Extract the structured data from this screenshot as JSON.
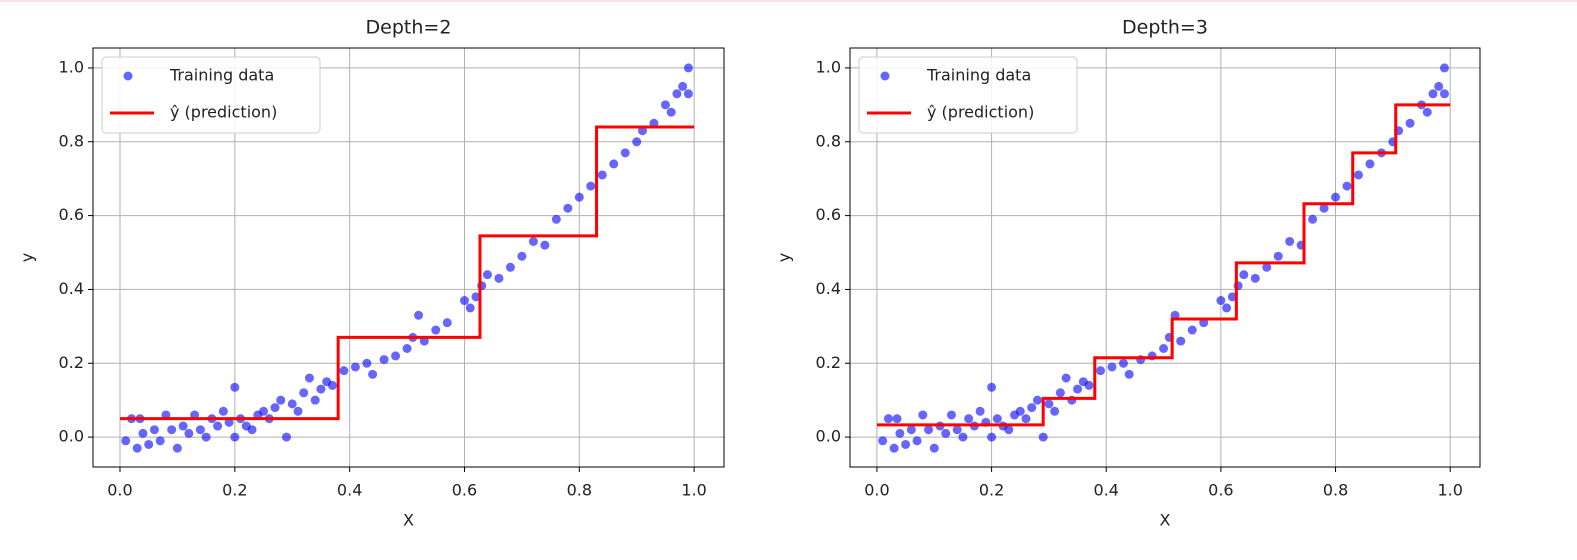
{
  "chart_data": [
    {
      "type": "scatter",
      "title": "Depth=2",
      "xlabel": "X",
      "ylabel": "y",
      "grid": true,
      "legend": "upper left",
      "xlim": [
        -0.047,
        1.052
      ],
      "ylim": [
        -0.081,
        1.054
      ],
      "xticks": [
        {
          "value": 0,
          "label": "0.0"
        },
        0.2,
        0.4,
        0.6,
        0.8,
        {
          "value": 1,
          "label": "1.0"
        }
      ],
      "yticks": [
        {
          "value": 0,
          "label": "0.0"
        },
        0.2,
        0.4,
        0.6,
        0.8,
        {
          "value": 1,
          "label": "1.0"
        }
      ],
      "series": [
        {
          "name": "Training data",
          "type": "scatter",
          "color": "#0000ff",
          "x": [
            0.01,
            0.02,
            0.03,
            0.035,
            0.04,
            0.05,
            0.06,
            0.07,
            0.08,
            0.09,
            0.1,
            0.11,
            0.12,
            0.13,
            0.14,
            0.15,
            0.16,
            0.17,
            0.18,
            0.19,
            0.2,
            0.2,
            0.21,
            0.22,
            0.23,
            0.24,
            0.25,
            0.26,
            0.27,
            0.28,
            0.29,
            0.3,
            0.31,
            0.32,
            0.33,
            0.34,
            0.35,
            0.36,
            0.37,
            0.39,
            0.41,
            0.43,
            0.44,
            0.46,
            0.48,
            0.5,
            0.51,
            0.52,
            0.53,
            0.55,
            0.57,
            0.6,
            0.61,
            0.62,
            0.63,
            0.64,
            0.66,
            0.68,
            0.7,
            0.72,
            0.74,
            0.76,
            0.78,
            0.8,
            0.82,
            0.84,
            0.86,
            0.88,
            0.9,
            0.91,
            0.93,
            0.95,
            0.96,
            0.97,
            0.98,
            0.99,
            0.99
          ],
          "values": [
            -0.01,
            0.05,
            -0.03,
            0.05,
            0.01,
            -0.02,
            0.02,
            -0.01,
            0.06,
            0.02,
            -0.03,
            0.03,
            0.01,
            0.06,
            0.02,
            0.0,
            0.05,
            0.03,
            0.07,
            0.04,
            0.135,
            0.0,
            0.05,
            0.03,
            0.02,
            0.06,
            0.07,
            0.05,
            0.08,
            0.1,
            0.0,
            0.09,
            0.07,
            0.12,
            0.16,
            0.1,
            0.13,
            0.15,
            0.14,
            0.18,
            0.19,
            0.2,
            0.17,
            0.21,
            0.22,
            0.24,
            0.27,
            0.33,
            0.26,
            0.29,
            0.31,
            0.37,
            0.35,
            0.38,
            0.41,
            0.44,
            0.43,
            0.46,
            0.49,
            0.53,
            0.52,
            0.59,
            0.62,
            0.65,
            0.68,
            0.71,
            0.74,
            0.77,
            0.8,
            0.83,
            0.85,
            0.9,
            0.88,
            0.93,
            0.95,
            1.0,
            0.93
          ]
        },
        {
          "name": "ŷ (prediction)",
          "type": "line",
          "color": "#ff0000",
          "x": [
            0,
            0.38,
            0.38,
            0.627,
            0.627,
            0.83,
            0.83,
            1.0
          ],
          "values": [
            0.05,
            0.05,
            0.27,
            0.27,
            0.545,
            0.545,
            0.84,
            0.84
          ]
        }
      ]
    },
    {
      "type": "scatter",
      "title": "Depth=3",
      "xlabel": "X",
      "ylabel": "y",
      "grid": true,
      "legend": "upper left",
      "xlim": [
        -0.047,
        1.052
      ],
      "ylim": [
        -0.081,
        1.054
      ],
      "xticks": [
        {
          "value": 0,
          "label": "0.0"
        },
        0.2,
        0.4,
        0.6,
        0.8,
        {
          "value": 1,
          "label": "1.0"
        }
      ],
      "yticks": [
        {
          "value": 0,
          "label": "0.0"
        },
        0.2,
        0.4,
        0.6,
        0.8,
        {
          "value": 1,
          "label": "1.0"
        }
      ],
      "series": [
        {
          "name": "Training data",
          "type": "scatter",
          "color": "#0000ff",
          "x": [
            0.01,
            0.02,
            0.03,
            0.035,
            0.04,
            0.05,
            0.06,
            0.07,
            0.08,
            0.09,
            0.1,
            0.11,
            0.12,
            0.13,
            0.14,
            0.15,
            0.16,
            0.17,
            0.18,
            0.19,
            0.2,
            0.2,
            0.21,
            0.22,
            0.23,
            0.24,
            0.25,
            0.26,
            0.27,
            0.28,
            0.29,
            0.3,
            0.31,
            0.32,
            0.33,
            0.34,
            0.35,
            0.36,
            0.37,
            0.39,
            0.41,
            0.43,
            0.44,
            0.46,
            0.48,
            0.5,
            0.51,
            0.52,
            0.53,
            0.55,
            0.57,
            0.6,
            0.61,
            0.62,
            0.63,
            0.64,
            0.66,
            0.68,
            0.7,
            0.72,
            0.74,
            0.76,
            0.78,
            0.8,
            0.82,
            0.84,
            0.86,
            0.88,
            0.9,
            0.91,
            0.93,
            0.95,
            0.96,
            0.97,
            0.98,
            0.99,
            0.99
          ],
          "values": [
            -0.01,
            0.05,
            -0.03,
            0.05,
            0.01,
            -0.02,
            0.02,
            -0.01,
            0.06,
            0.02,
            -0.03,
            0.03,
            0.01,
            0.06,
            0.02,
            0.0,
            0.05,
            0.03,
            0.07,
            0.04,
            0.135,
            0.0,
            0.05,
            0.03,
            0.02,
            0.06,
            0.07,
            0.05,
            0.08,
            0.1,
            0.0,
            0.09,
            0.07,
            0.12,
            0.16,
            0.1,
            0.13,
            0.15,
            0.14,
            0.18,
            0.19,
            0.2,
            0.17,
            0.21,
            0.22,
            0.24,
            0.27,
            0.33,
            0.26,
            0.29,
            0.31,
            0.37,
            0.35,
            0.38,
            0.41,
            0.44,
            0.43,
            0.46,
            0.49,
            0.53,
            0.52,
            0.59,
            0.62,
            0.65,
            0.68,
            0.71,
            0.74,
            0.77,
            0.8,
            0.83,
            0.85,
            0.9,
            0.88,
            0.93,
            0.95,
            1.0,
            0.93
          ]
        },
        {
          "name": "ŷ (prediction)",
          "type": "line",
          "color": "#ff0000",
          "x": [
            0,
            0.29,
            0.29,
            0.38,
            0.38,
            0.515,
            0.515,
            0.627,
            0.627,
            0.745,
            0.745,
            0.83,
            0.83,
            0.905,
            0.905,
            1.0
          ],
          "values": [
            0.033,
            0.033,
            0.105,
            0.105,
            0.215,
            0.215,
            0.32,
            0.32,
            0.472,
            0.472,
            0.632,
            0.632,
            0.77,
            0.77,
            0.9,
            0.9
          ]
        }
      ]
    }
  ]
}
